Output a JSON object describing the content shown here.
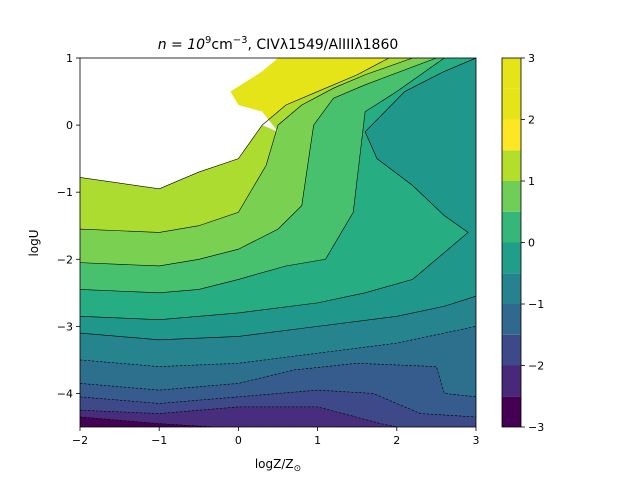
{
  "chart_data": {
    "type": "contour",
    "title_parts": {
      "pre": "n = 10",
      "sup1": "9",
      "mid": "cm",
      "sup2": "−3",
      "post": ", CIVλ1549/AlIIIλ1860"
    },
    "xlabel_parts": {
      "pre": "logZ/Z",
      "sub": "⊙"
    },
    "ylabel": "logU",
    "xlim": [
      -2,
      3
    ],
    "ylim": [
      -4.5,
      1
    ],
    "x_ticks": [
      {
        "value": -2,
        "label": "−2"
      },
      {
        "value": -1,
        "label": "−1"
      },
      {
        "value": 0,
        "label": "0"
      },
      {
        "value": 1,
        "label": "1"
      },
      {
        "value": 2,
        "label": "2"
      },
      {
        "value": 3,
        "label": "3"
      }
    ],
    "y_ticks": [
      {
        "value": 1,
        "label": "1"
      },
      {
        "value": 0,
        "label": "0"
      },
      {
        "value": -1,
        "label": "−1"
      },
      {
        "value": -2,
        "label": "−2"
      },
      {
        "value": -3,
        "label": "−3"
      },
      {
        "value": -4,
        "label": "−4"
      }
    ],
    "colorbar": {
      "range": [
        -3,
        3
      ],
      "ticks": [
        {
          "value": 3,
          "label": "3"
        },
        {
          "value": 2,
          "label": "2"
        },
        {
          "value": 1,
          "label": "1"
        },
        {
          "value": 0,
          "label": "0"
        },
        {
          "value": -1,
          "label": "−1"
        },
        {
          "value": -2,
          "label": "−2"
        },
        {
          "value": -3,
          "label": "−3"
        }
      ],
      "levels": [
        -3,
        -2.5,
        -2,
        -1.5,
        -1,
        -0.5,
        0,
        0.5,
        1,
        1.5,
        2,
        2.5,
        3
      ],
      "colors": [
        "#440154",
        "#482878",
        "#3e4989",
        "#31688e",
        "#26828e",
        "#1f9e89",
        "#35b779",
        "#6ece58",
        "#b5de2b",
        "#fde725",
        "#e4e418",
        "#e4e418"
      ]
    },
    "band_colors": [
      "#e5e418",
      "#addc30",
      "#7ad151",
      "#47c16e",
      "#26ad81",
      "#1f988b",
      "#25848e",
      "#2d708e",
      "#365c8d",
      "#3e4989",
      "#472d7b",
      "#440154"
    ],
    "contour_boundaries": [
      {
        "level": 2.5,
        "points": [
          [
            -2,
            -0.78
          ],
          [
            -1,
            -0.95
          ],
          [
            -0.5,
            -0.7
          ],
          [
            0,
            -0.5
          ],
          [
            0.3,
            0
          ],
          [
            0.6,
            0.3
          ],
          [
            1.0,
            0.5
          ],
          [
            1.5,
            0.75
          ],
          [
            1.9,
            1.0
          ]
        ]
      },
      {
        "level": 2.0,
        "points": [
          [
            -2,
            -1.55
          ],
          [
            -1,
            -1.6
          ],
          [
            -0.5,
            -1.5
          ],
          [
            0,
            -1.3
          ],
          [
            0.35,
            -0.6
          ],
          [
            0.5,
            0
          ],
          [
            0.8,
            0.3
          ],
          [
            1.2,
            0.55
          ],
          [
            1.6,
            0.75
          ],
          [
            2.2,
            1.0
          ]
        ]
      },
      {
        "level": 1.5,
        "points": [
          [
            -2,
            -2.05
          ],
          [
            -1,
            -2.1
          ],
          [
            -0.5,
            -2.0
          ],
          [
            0,
            -1.85
          ],
          [
            0.5,
            -1.55
          ],
          [
            0.8,
            -1.2
          ],
          [
            0.95,
            0
          ],
          [
            1.2,
            0.4
          ],
          [
            1.6,
            0.6
          ],
          [
            2.5,
            1.0
          ]
        ]
      },
      {
        "level": 1.0,
        "points": [
          [
            -2,
            -2.45
          ],
          [
            -1,
            -2.5
          ],
          [
            -0.5,
            -2.45
          ],
          [
            0,
            -2.3
          ],
          [
            0.6,
            -2.1
          ],
          [
            1.1,
            -2.0
          ],
          [
            1.45,
            -1.3
          ],
          [
            1.6,
            0.2
          ],
          [
            2.0,
            0.5
          ],
          [
            2.6,
            1.0
          ]
        ]
      },
      {
        "level": 0.5,
        "points": [
          [
            -2,
            -2.85
          ],
          [
            -1,
            -2.9
          ],
          [
            0,
            -2.8
          ],
          [
            1,
            -2.65
          ],
          [
            1.6,
            -2.5
          ],
          [
            2.2,
            -2.3
          ],
          [
            2.9,
            -1.6
          ],
          [
            2.6,
            -1.35
          ],
          [
            2.2,
            -0.9
          ],
          [
            1.75,
            -0.5
          ],
          [
            1.6,
            -0.1
          ],
          [
            2.1,
            0.5
          ],
          [
            2.6,
            0.8
          ],
          [
            3,
            1.0
          ]
        ]
      },
      {
        "level": 0.0,
        "points": [
          [
            -2,
            -3.1
          ],
          [
            -1,
            -3.2
          ],
          [
            0,
            -3.15
          ],
          [
            1,
            -3.0
          ],
          [
            2,
            -2.85
          ],
          [
            2.6,
            -2.7
          ],
          [
            3,
            -2.55
          ]
        ]
      },
      {
        "level": -0.5,
        "points": [
          [
            -2,
            -3.5
          ],
          [
            -1,
            -3.6
          ],
          [
            0,
            -3.55
          ],
          [
            1,
            -3.4
          ],
          [
            2,
            -3.25
          ],
          [
            3,
            -3.0
          ]
        ]
      },
      {
        "level": -1.0,
        "points": [
          [
            -2,
            -3.85
          ],
          [
            -1,
            -3.95
          ],
          [
            0,
            -3.85
          ],
          [
            0.7,
            -3.65
          ],
          [
            1.5,
            -3.55
          ],
          [
            2.5,
            -3.6
          ],
          [
            2.6,
            -4.0
          ],
          [
            3,
            -4.05
          ]
        ]
      },
      {
        "level": -1.5,
        "points": [
          [
            -2,
            -4.05
          ],
          [
            -1,
            -4.15
          ],
          [
            0,
            -4.05
          ],
          [
            1,
            -3.95
          ],
          [
            1.7,
            -4.0
          ],
          [
            2.3,
            -4.3
          ],
          [
            3,
            -4.35
          ]
        ]
      },
      {
        "level": -2.0,
        "points": [
          [
            -2,
            -4.25
          ],
          [
            -1,
            -4.3
          ],
          [
            0,
            -4.2
          ],
          [
            1,
            -4.2
          ],
          [
            1.8,
            -4.45
          ],
          [
            2.0,
            -4.5
          ]
        ]
      },
      {
        "level": -2.5,
        "points": [
          [
            -2,
            -4.35
          ],
          [
            -1,
            -4.45
          ],
          [
            -0.3,
            -4.5
          ]
        ]
      }
    ],
    "white_region": [
      [
        -2,
        1
      ],
      [
        -2,
        -0.78
      ],
      [
        -1,
        -0.95
      ],
      [
        -0.5,
        -0.7
      ],
      [
        0,
        -0.5
      ],
      [
        0.3,
        0
      ],
      [
        0.5,
        -0.1
      ],
      [
        0.3,
        0.2
      ],
      [
        0,
        0.3
      ],
      [
        -0.1,
        0.5
      ],
      [
        0.3,
        0.8
      ],
      [
        0.5,
        1.0
      ]
    ]
  }
}
